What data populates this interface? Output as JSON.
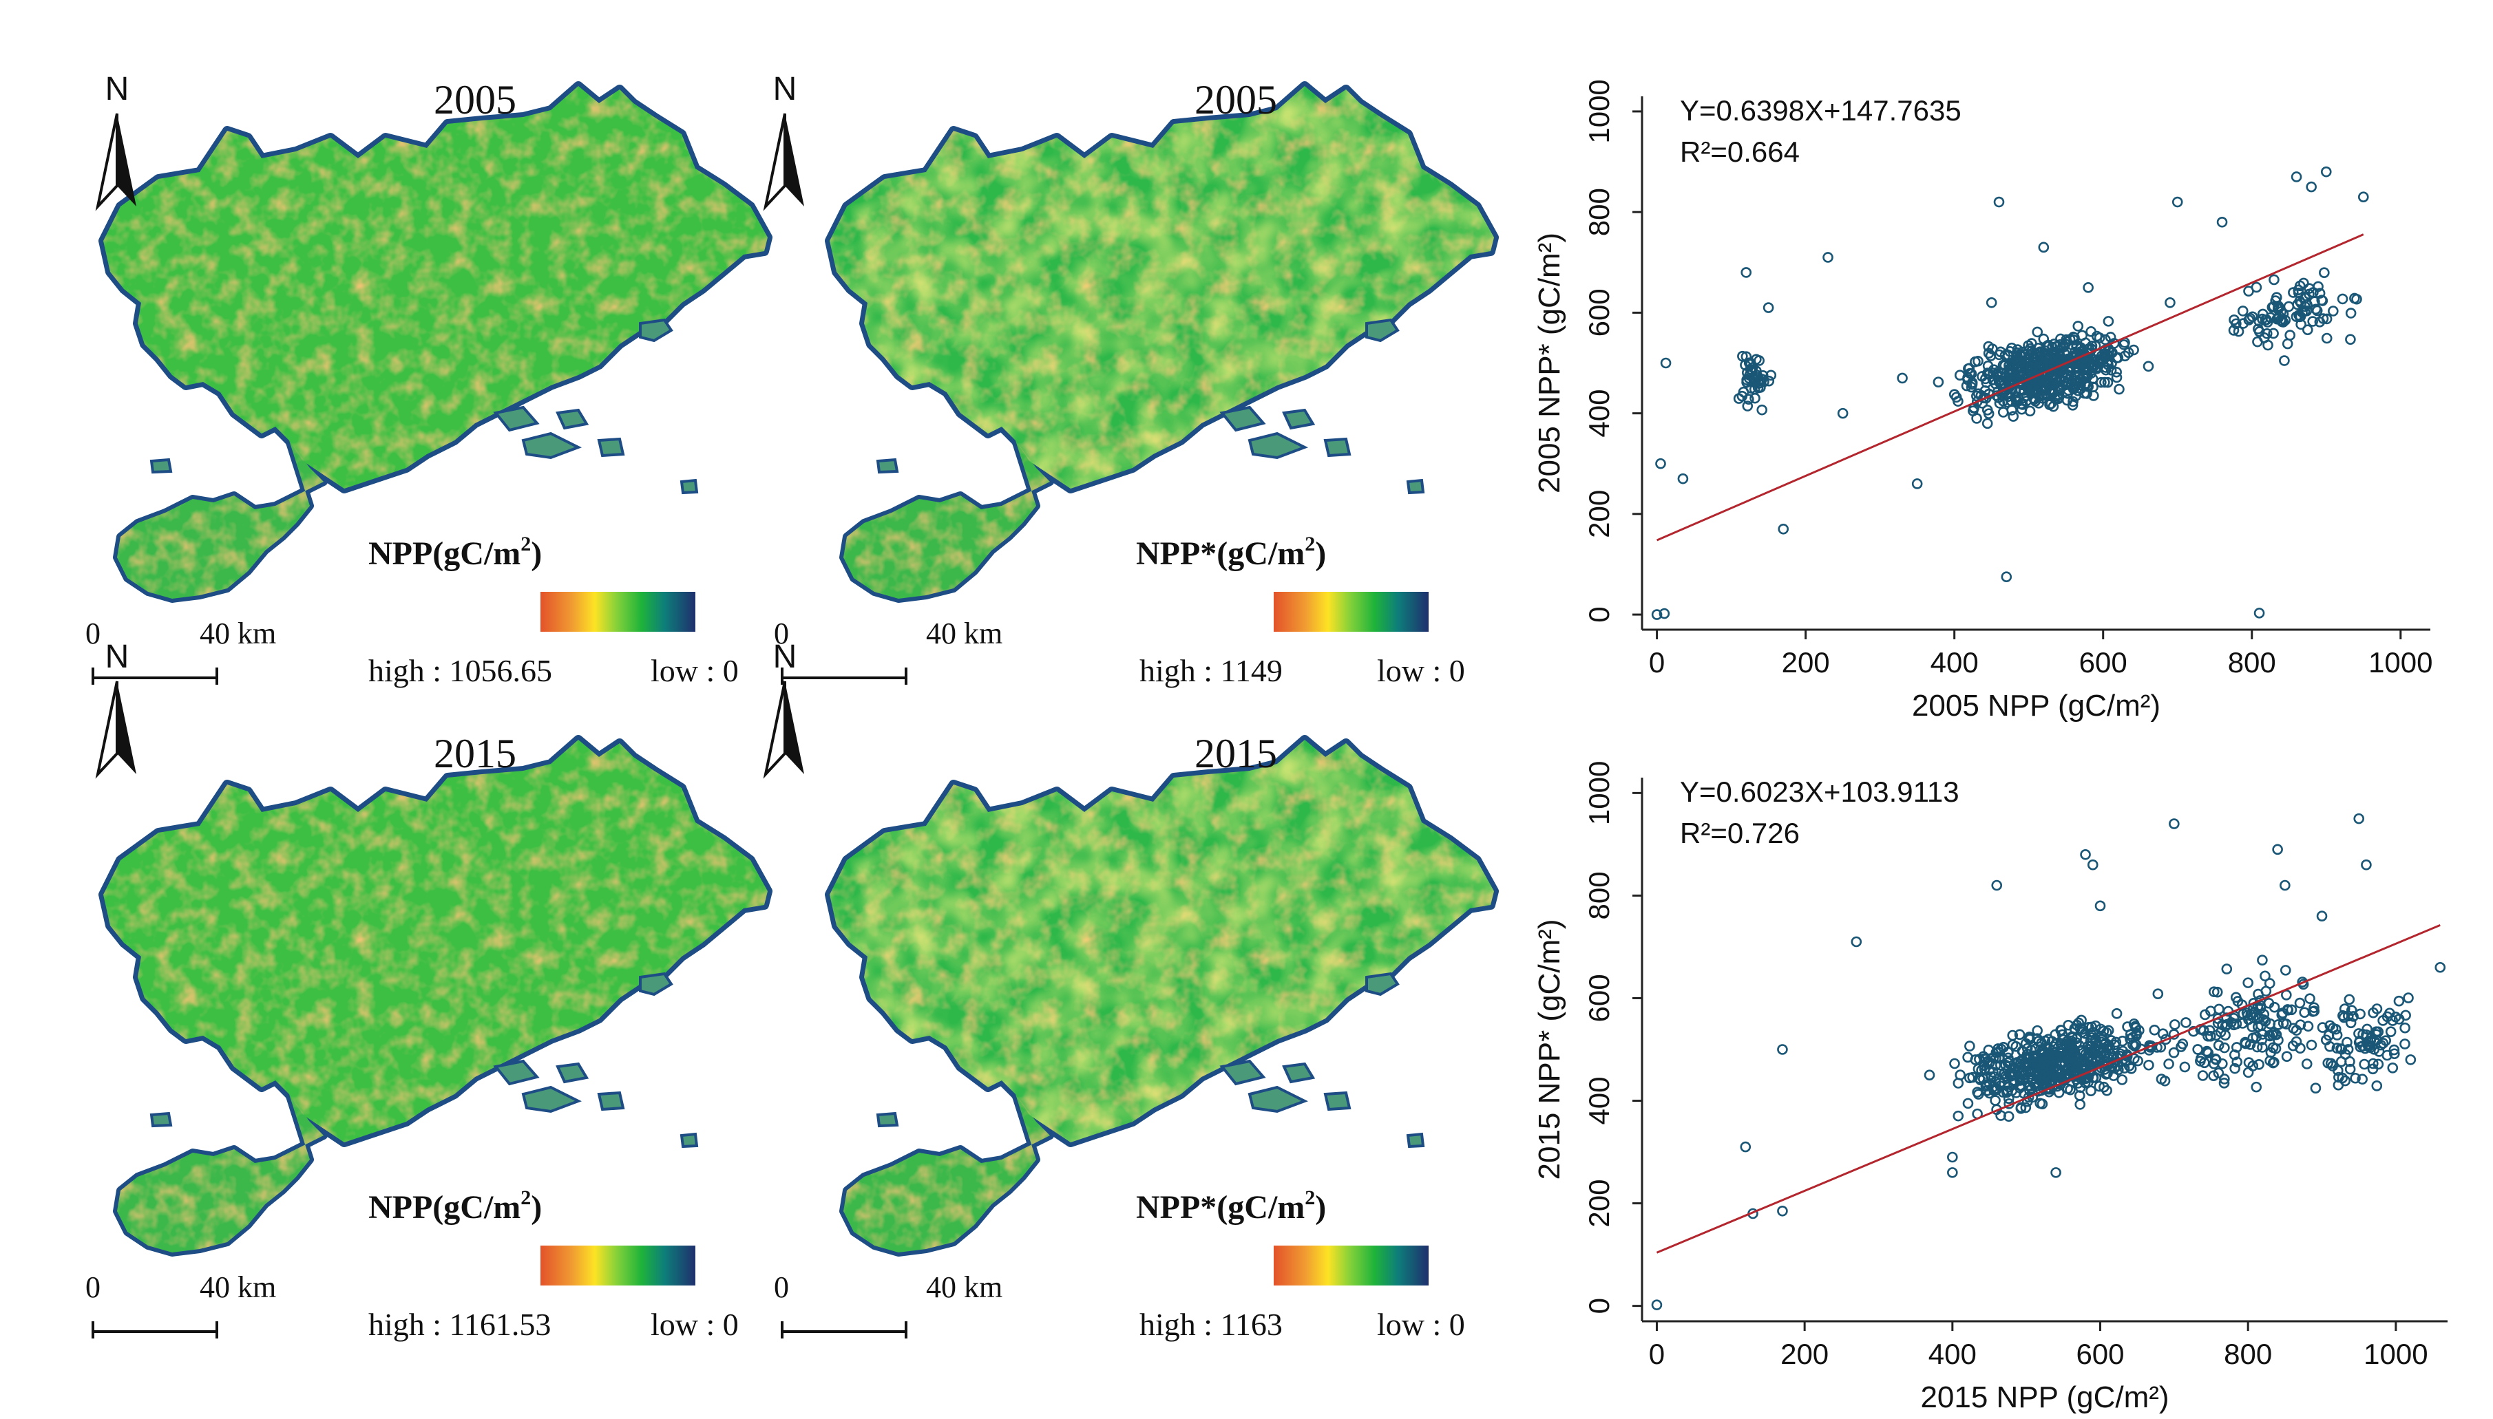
{
  "colors": {
    "ramp": [
      "#e3522a",
      "#f08a30",
      "#fde324",
      "#a8d83a",
      "#1fb33a",
      "#0d8a6a",
      "#1a3f80",
      "#222a6a"
    ],
    "map_land": "#3fbf45",
    "map_warm": "#e7a33a",
    "map_yellow": "#c9d93f",
    "map_water_edge": "#1e4d86",
    "scatter_point": "#1a5676",
    "regression_line": "#b3262e"
  },
  "maps": [
    {
      "year": "2005",
      "legend_title": "NPP(gC/m",
      "legend_sup": "2",
      "legend_close": ")",
      "high": "high : 1056.65",
      "low": "low : 0",
      "scale_zero": "0",
      "scale_label": "40 km",
      "north": "N"
    },
    {
      "year": "2005",
      "legend_title": "NPP*(gC/m",
      "legend_sup": "2",
      "legend_close": ")",
      "high": "high : 1149",
      "low": "low : 0",
      "scale_zero": "0",
      "scale_label": "40 km",
      "north": "N"
    },
    {
      "year": "2015",
      "legend_title": "NPP(gC/m",
      "legend_sup": "2",
      "legend_close": ")",
      "high": "high : 1161.53",
      "low": "low : 0",
      "scale_zero": "0",
      "scale_label": "40 km",
      "north": "N"
    },
    {
      "year": "2015",
      "legend_title": "NPP*(gC/m",
      "legend_sup": "2",
      "legend_close": ")",
      "high": "high : 1163",
      "low": "low : 0",
      "scale_zero": "0",
      "scale_label": "40 km",
      "north": "N"
    }
  ],
  "chart_data": [
    {
      "type": "scatter",
      "xlabel": "2005 NPP (gC/m²)",
      "ylabel": "2005 NPP* (gC/m²)",
      "xlim": [
        -20,
        1040
      ],
      "ylim": [
        -30,
        1030
      ],
      "xticks": [
        0,
        200,
        400,
        600,
        800,
        1000
      ],
      "yticks": [
        0,
        200,
        400,
        600,
        800,
        1000
      ],
      "equation": "Y=0.6398X+147.7635",
      "r2": "R²=0.664",
      "fit": {
        "slope": 0.6398,
        "intercept": 147.7635,
        "x_range": [
          0,
          950
        ]
      },
      "cluster_centers": [
        [
          520,
          480
        ],
        [
          130,
          470
        ],
        [
          850,
          600
        ]
      ],
      "sample_points": [
        [
          0,
          0
        ],
        [
          10,
          2
        ],
        [
          5,
          300
        ],
        [
          12,
          500
        ],
        [
          35,
          270
        ],
        [
          120,
          680
        ],
        [
          150,
          610
        ],
        [
          170,
          170
        ],
        [
          230,
          710
        ],
        [
          250,
          400
        ],
        [
          330,
          470
        ],
        [
          350,
          260
        ],
        [
          430,
          390
        ],
        [
          450,
          620
        ],
        [
          460,
          820
        ],
        [
          470,
          75
        ],
        [
          520,
          730
        ],
        [
          580,
          650
        ],
        [
          690,
          620
        ],
        [
          700,
          820
        ],
        [
          760,
          780
        ],
        [
          810,
          3
        ],
        [
          860,
          870
        ],
        [
          880,
          850
        ],
        [
          900,
          880
        ],
        [
          950,
          830
        ]
      ]
    },
    {
      "type": "scatter",
      "xlabel": "2015 NPP (gC/m²)",
      "ylabel": "2015 NPP* (gC/m²)",
      "xlim": [
        -20,
        1070
      ],
      "ylim": [
        -30,
        1030
      ],
      "xticks": [
        0,
        200,
        400,
        600,
        800,
        1000
      ],
      "yticks": [
        0,
        200,
        400,
        600,
        800,
        1000
      ],
      "equation": "Y=0.6023X+103.9113",
      "r2": "R²=0.726",
      "fit": {
        "slope": 0.6023,
        "intercept": 103.9113,
        "x_range": [
          0,
          1060
        ]
      },
      "cluster_centers": [
        [
          540,
          470
        ],
        [
          800,
          540
        ],
        [
          950,
          520
        ]
      ],
      "sample_points": [
        [
          0,
          2
        ],
        [
          120,
          310
        ],
        [
          130,
          180
        ],
        [
          170,
          185
        ],
        [
          170,
          500
        ],
        [
          270,
          710
        ],
        [
          400,
          290
        ],
        [
          400,
          260
        ],
        [
          460,
          820
        ],
        [
          540,
          260
        ],
        [
          580,
          880
        ],
        [
          590,
          860
        ],
        [
          600,
          780
        ],
        [
          700,
          940
        ],
        [
          800,
          630
        ],
        [
          840,
          890
        ],
        [
          850,
          820
        ],
        [
          900,
          760
        ],
        [
          950,
          950
        ],
        [
          960,
          860
        ],
        [
          1020,
          480
        ],
        [
          1060,
          660
        ]
      ]
    }
  ]
}
